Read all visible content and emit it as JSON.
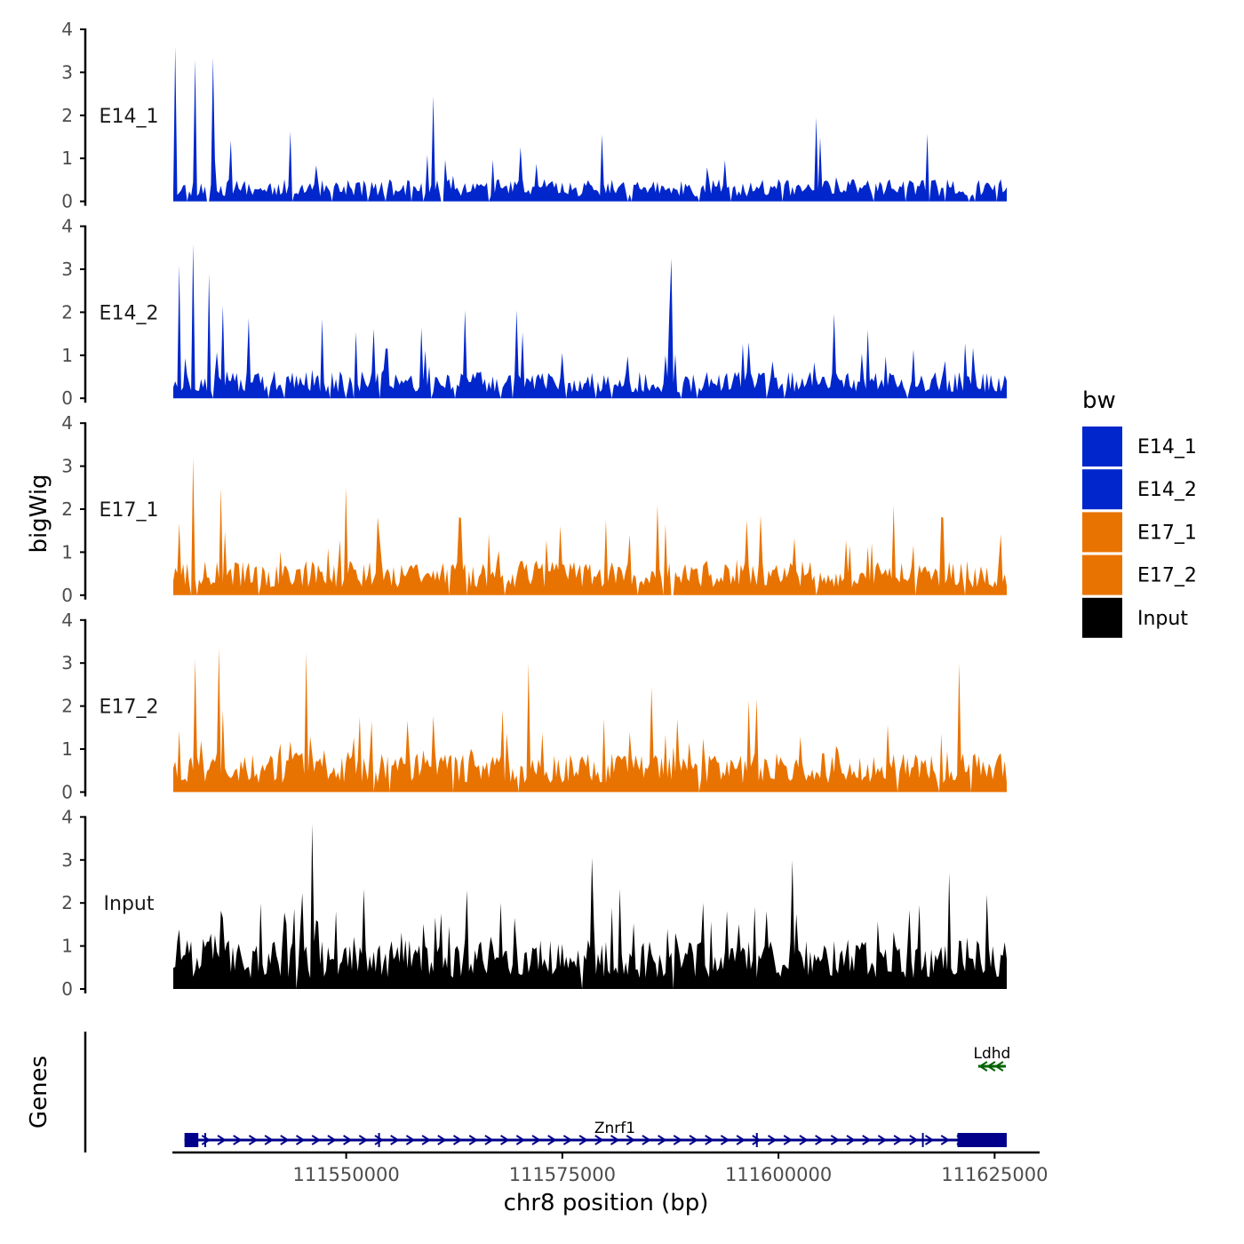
{
  "chart_data": {
    "type": "area",
    "chromosome": "chr8",
    "xlabel": "chr8 position (bp)",
    "ylabel": "bigWig",
    "genes_label": "Genes",
    "xlim": [
      111530000,
      111630000
    ],
    "track_xrange": [
      111530000,
      111626400
    ],
    "ylim": [
      0,
      4
    ],
    "y_ticks": [
      "0",
      "1",
      "2",
      "3",
      "4"
    ],
    "x_ticks": [
      {
        "value": 111550000,
        "label": "111550000"
      },
      {
        "value": 111575000,
        "label": "111575000"
      },
      {
        "value": 111600000,
        "label": "111600000"
      },
      {
        "value": 111625000,
        "label": "111625000"
      }
    ],
    "legend": {
      "title": "bw",
      "entries": [
        {
          "label": "E14_1",
          "color": "#0026CC"
        },
        {
          "label": "E14_2",
          "color": "#0026CC"
        },
        {
          "label": "E17_1",
          "color": "#E97300"
        },
        {
          "label": "E17_2",
          "color": "#E97300"
        },
        {
          "label": "Input",
          "color": "#000000"
        }
      ]
    },
    "series": [
      {
        "name": "E14_1",
        "color": "#0026CC",
        "seed": 11,
        "mean": 0.45,
        "peak_prob": 0.07,
        "peak_height": 1.5,
        "gap_prob": 0.05,
        "anchors": [
          {
            "x": 111530200,
            "y": 3.6
          },
          {
            "x": 111532500,
            "y": 3.3
          },
          {
            "x": 111534500,
            "y": 3.35
          },
          {
            "x": 111560000,
            "y": 2.45
          }
        ]
      },
      {
        "name": "E14_2",
        "color": "#0026CC",
        "seed": 23,
        "mean": 0.55,
        "peak_prob": 0.09,
        "peak_height": 1.6,
        "gap_prob": 0.04,
        "anchors": [
          {
            "x": 111530700,
            "y": 3.1
          },
          {
            "x": 111532300,
            "y": 3.6
          },
          {
            "x": 111534200,
            "y": 2.9
          },
          {
            "x": 111587500,
            "y": 3.25
          }
        ]
      },
      {
        "name": "E17_1",
        "color": "#E97300",
        "seed": 37,
        "mean": 0.7,
        "peak_prob": 0.1,
        "peak_height": 1.5,
        "gap_prob": 0.03,
        "anchors": [
          {
            "x": 111532300,
            "y": 3.2
          },
          {
            "x": 111535500,
            "y": 2.5
          },
          {
            "x": 111550000,
            "y": 2.5
          },
          {
            "x": 111586000,
            "y": 2.1
          }
        ]
      },
      {
        "name": "E17_2",
        "color": "#E97300",
        "seed": 53,
        "mean": 0.8,
        "peak_prob": 0.12,
        "peak_height": 1.6,
        "gap_prob": 0.03,
        "anchors": [
          {
            "x": 111532500,
            "y": 3.1
          },
          {
            "x": 111535300,
            "y": 3.35
          },
          {
            "x": 111545300,
            "y": 3.25
          },
          {
            "x": 111571000,
            "y": 3.0
          },
          {
            "x": 111621000,
            "y": 3.0
          }
        ]
      },
      {
        "name": "Input",
        "color": "#000000",
        "seed": 71,
        "mean": 1.0,
        "peak_prob": 0.14,
        "peak_height": 1.5,
        "gap_prob": 0.01,
        "anchors": [
          {
            "x": 111546000,
            "y": 3.85
          },
          {
            "x": 111578500,
            "y": 3.05
          },
          {
            "x": 111601500,
            "y": 3.0
          },
          {
            "x": 111619800,
            "y": 2.7
          }
        ]
      }
    ],
    "genes": [
      {
        "name": "Znrf1",
        "strand": "+",
        "color": "#00008B",
        "start": 111531300,
        "end": 111626400,
        "exons": [
          [
            111531300,
            111532900
          ],
          [
            111620700,
            111626400
          ]
        ],
        "intron_ticks": [
          111533700,
          111553800,
          111597500,
          111616700
        ]
      },
      {
        "name": "Ldhd",
        "strand": "-",
        "color": "#006400",
        "start": 111623100,
        "end": 111626300,
        "exons": [],
        "intron_ticks": []
      }
    ]
  }
}
